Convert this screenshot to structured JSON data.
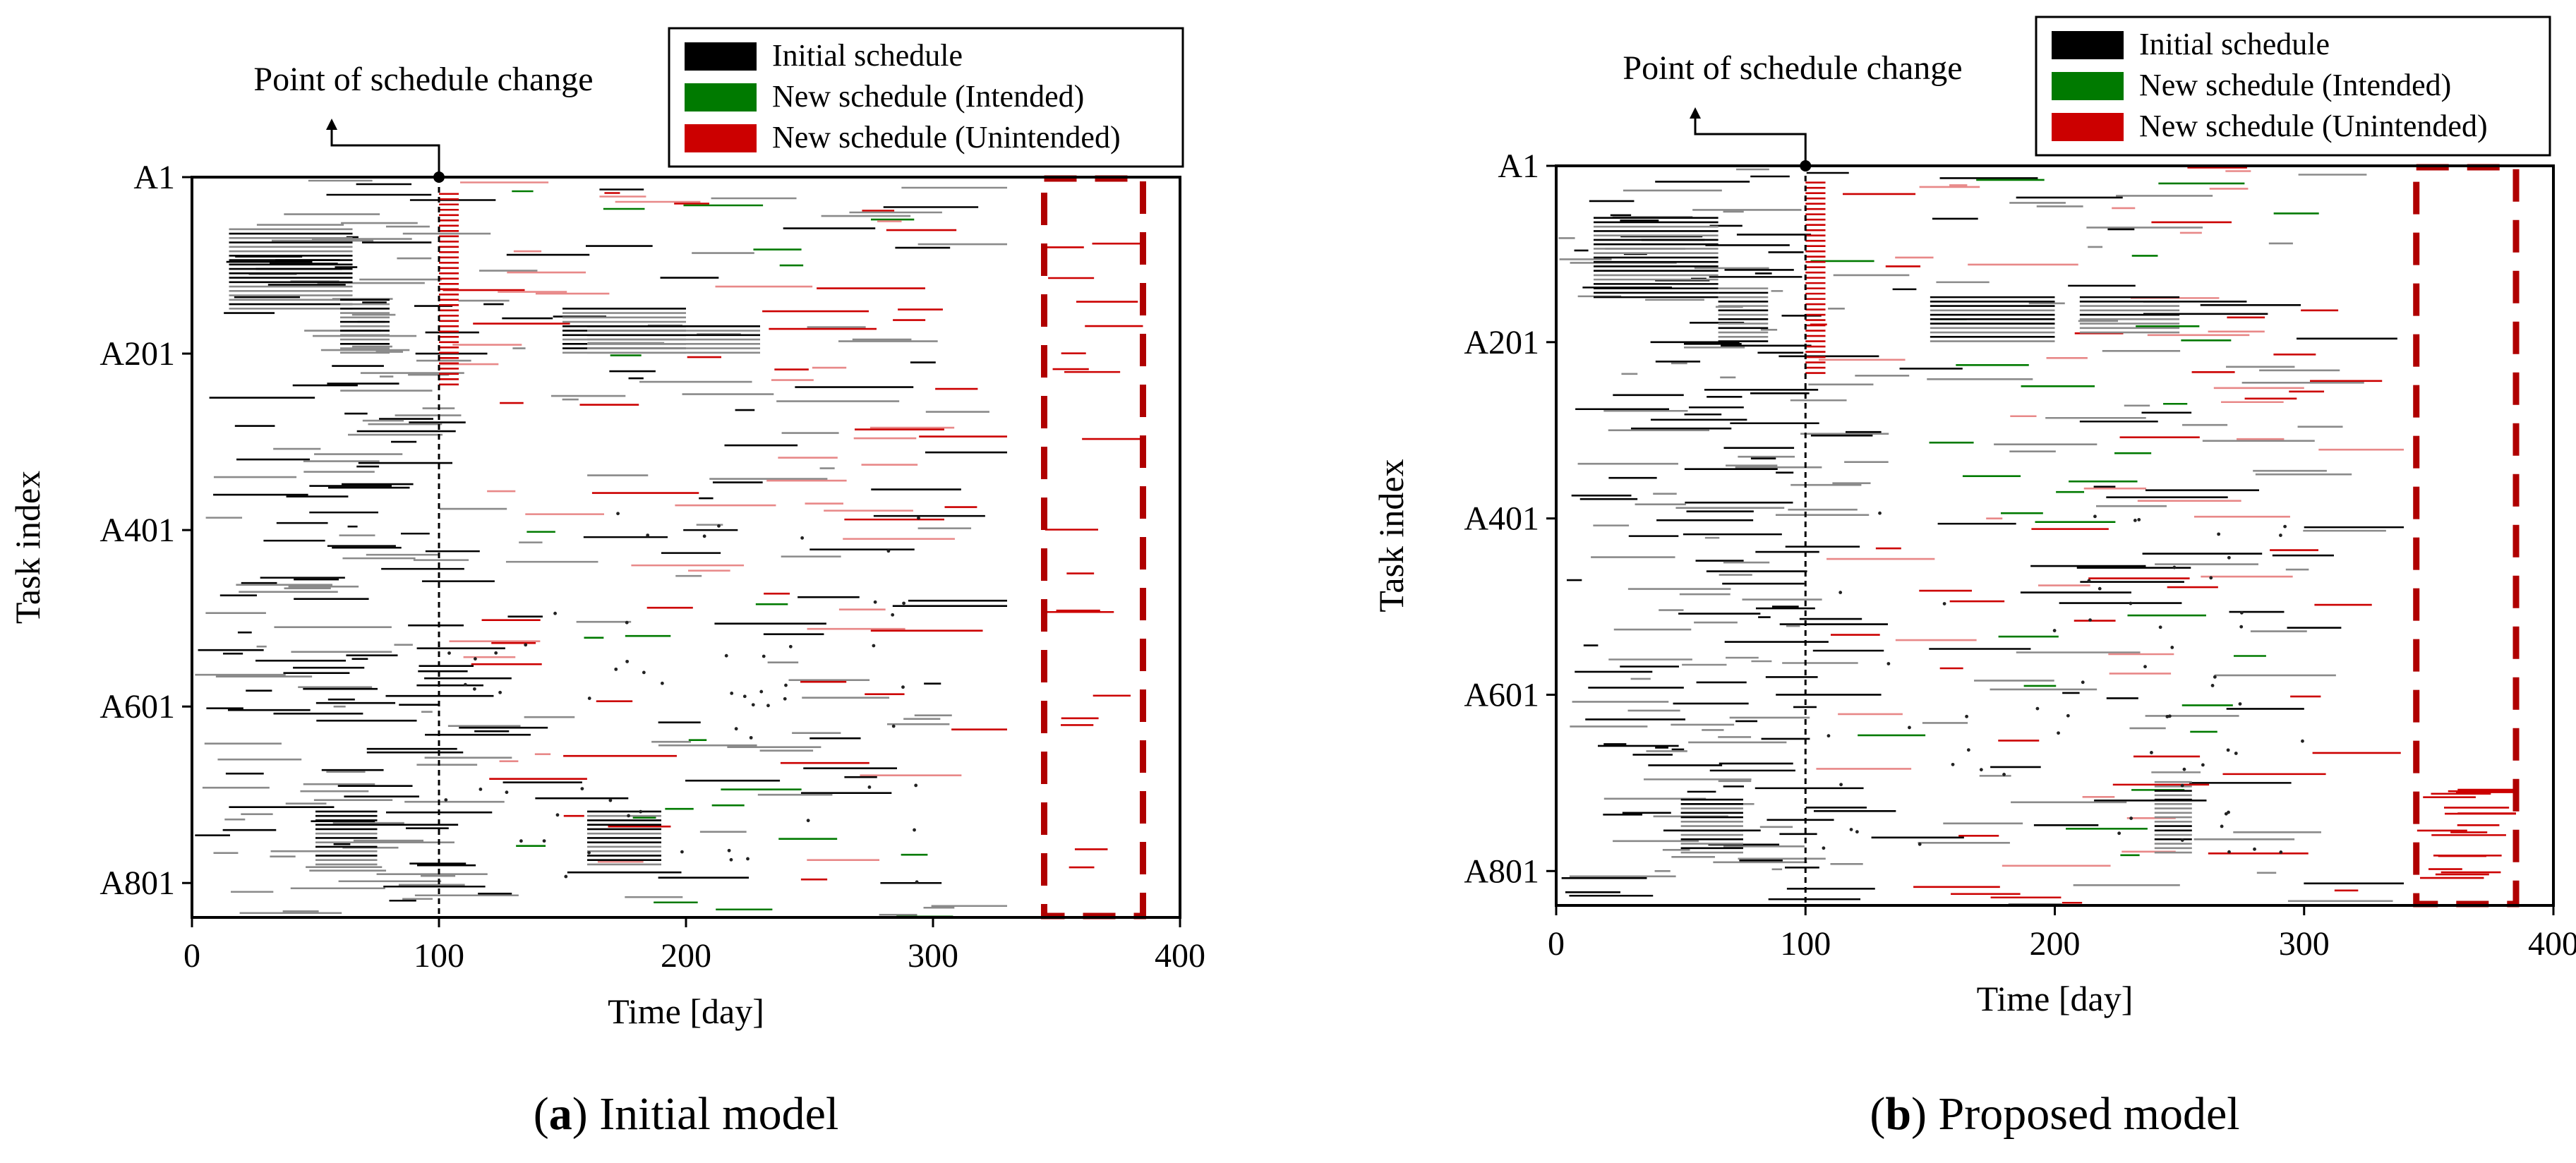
{
  "chart_data": [
    {
      "type": "gantt",
      "panel_letter": "a",
      "caption_text": "Initial model",
      "xlabel": "Time [day]",
      "ylabel": "Task index",
      "xlim": [
        0,
        400
      ],
      "xticks": [
        "0",
        "100",
        "200",
        "300",
        "400"
      ],
      "ylim": [
        1,
        840
      ],
      "yticks": [
        {
          "label": "A1",
          "value": 1
        },
        {
          "label": "A201",
          "value": 201
        },
        {
          "label": "A401",
          "value": 401
        },
        {
          "label": "A601",
          "value": 601
        },
        {
          "label": "A801",
          "value": 801
        }
      ],
      "change_point": {
        "day": 100,
        "label": "Point of schedule change"
      },
      "legend": {
        "position": "top-right",
        "entries": [
          {
            "label": "Initial schedule",
            "color": "#000000"
          },
          {
            "label": "New schedule (Intended)",
            "color": "#007a00"
          },
          {
            "label": "New schedule (Unintended)",
            "color": "#cc0000"
          }
        ]
      },
      "highlight_region": {
        "x0": 345,
        "x1": 385,
        "color": "#b00000"
      },
      "max_task_end_day": 330
    },
    {
      "type": "gantt",
      "panel_letter": "b",
      "caption_text": "Proposed model",
      "xlabel": "Time [day]",
      "ylabel": "Task index",
      "xlim": [
        0,
        400
      ],
      "xticks": [
        "0",
        "100",
        "200",
        "300",
        "400"
      ],
      "ylim": [
        1,
        840
      ],
      "yticks": [
        {
          "label": "A1",
          "value": 1
        },
        {
          "label": "A201",
          "value": 201
        },
        {
          "label": "A401",
          "value": 401
        },
        {
          "label": "A601",
          "value": 601
        },
        {
          "label": "A801",
          "value": 801
        }
      ],
      "change_point": {
        "day": 100,
        "label": "Point of schedule change"
      },
      "legend": {
        "position": "top-right",
        "entries": [
          {
            "label": "Initial schedule",
            "color": "#000000"
          },
          {
            "label": "New schedule (Intended)",
            "color": "#007a00"
          },
          {
            "label": "New schedule (Unintended)",
            "color": "#cc0000"
          }
        ]
      },
      "highlight_region": {
        "x0": 345,
        "x1": 385,
        "color": "#b00000"
      },
      "max_task_end_day": 340
    }
  ],
  "colors": {
    "initial": "#000000",
    "initial_grey": "#8a8a8a",
    "intended": "#007a00",
    "unintended": "#cc0000",
    "unintended_light": "#e88888",
    "highlight": "#b00000"
  }
}
